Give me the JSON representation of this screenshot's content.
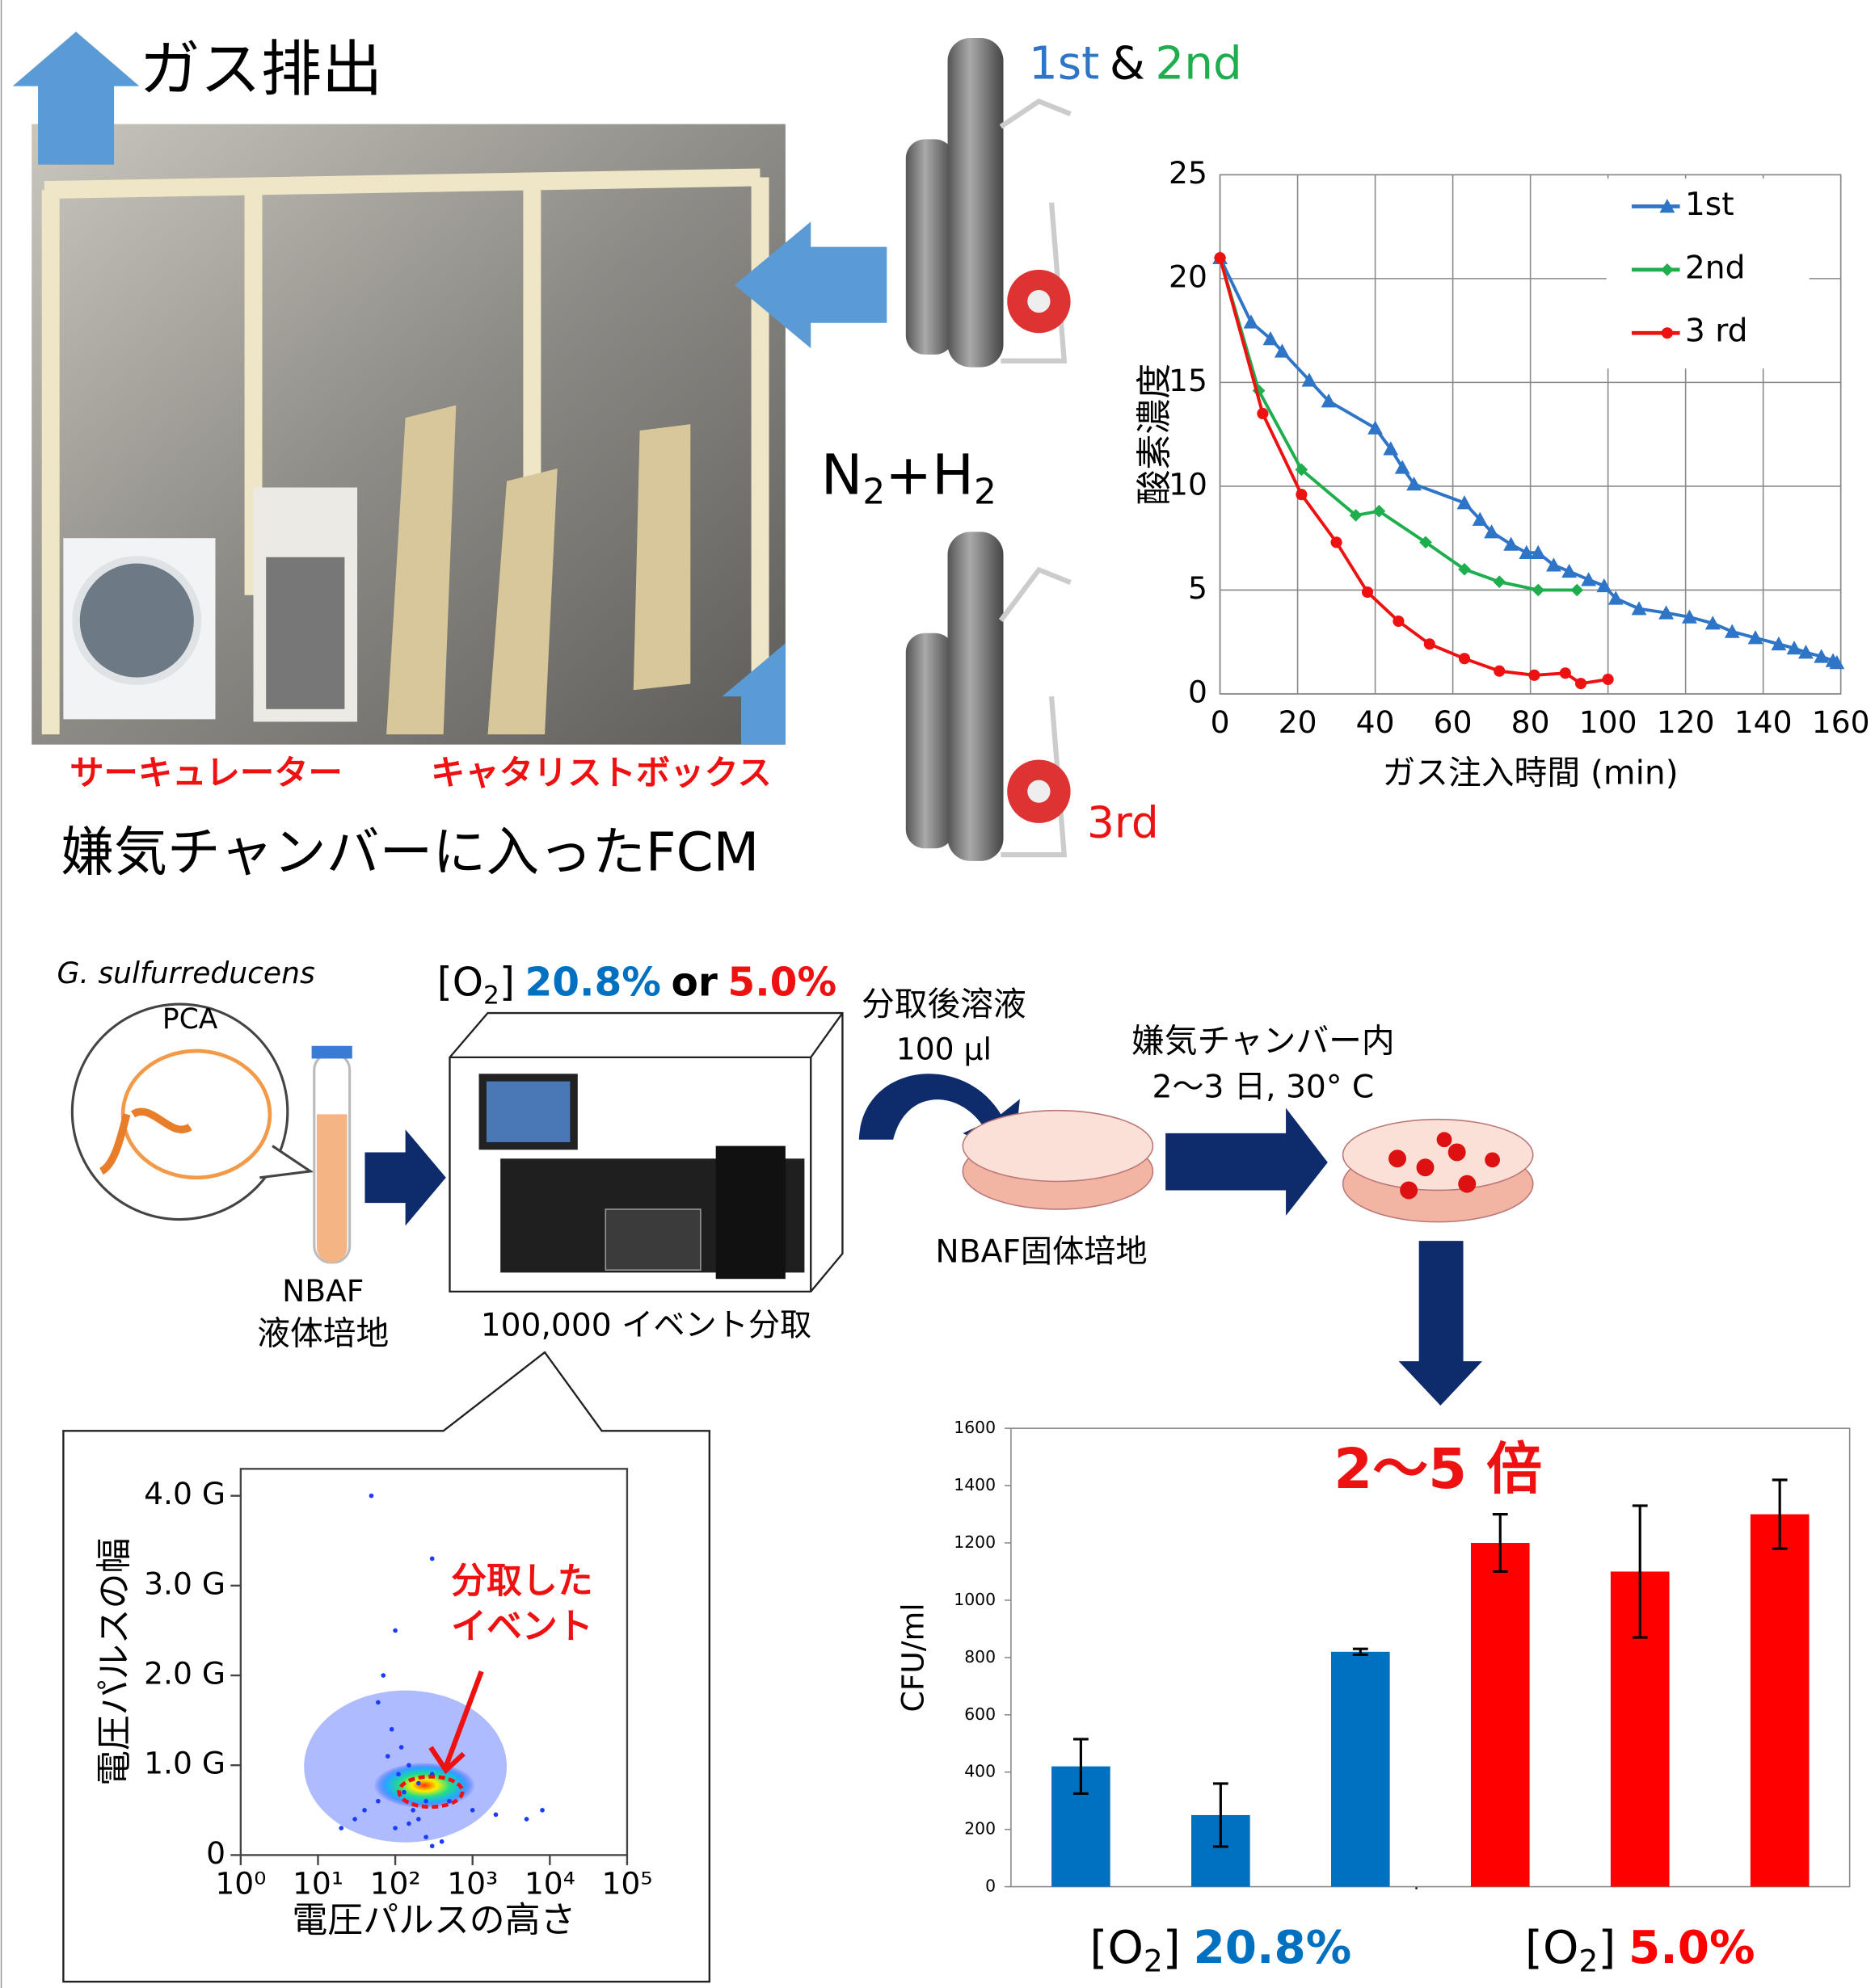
{
  "header": {
    "gas_exhaust": "ガス排出",
    "gas_n": "N",
    "gas_sub1": "2",
    "gas_plus_h": "+H",
    "gas_sub2": "2",
    "cyl_1st": "1st",
    "cyl_amp": "&",
    "cyl_2nd": "2nd",
    "cyl_3rd": "3rd",
    "circulator": "サーキュレーター",
    "catalyst_box": "キャタリストボックス",
    "chamber_caption": "嫌気チャンバーに入ったFCM"
  },
  "workflow": {
    "species": "G. sulfurreducens",
    "strain": "PCA",
    "medium_line1": "NBAF",
    "medium_line2": "液体培地",
    "o2_pre": "[O",
    "o2_sub": "2",
    "o2_post": "]",
    "o2_high": "20.8%",
    "o2_or": "or",
    "o2_low": "5.0%",
    "sorted_solution": "分取後溶液",
    "volume": "100 µl",
    "chamber_inside": "嫌気チャンバー内",
    "incubation": "2～3 日, 30° C",
    "solid_medium": "NBAF固体培地",
    "events_sorted": "100,000 イベント分取"
  },
  "chart_data": [
    {
      "type": "line",
      "xlabel": "ガス注入時間 (min)",
      "ylabel": "酸素濃度",
      "xlim": [
        0,
        160
      ],
      "xticks": [
        0,
        20,
        40,
        60,
        80,
        100,
        120,
        140,
        160
      ],
      "ylim": [
        0,
        25
      ],
      "yticks": [
        0,
        5,
        10,
        15,
        20,
        25
      ],
      "grid": true,
      "legend": "upper right",
      "series": [
        {
          "name": "1st",
          "color": "#2e75c8",
          "marker": "triangle",
          "x": [
            0,
            8,
            13,
            16,
            23,
            28,
            40,
            44,
            47,
            50,
            63,
            67,
            70,
            75,
            79,
            82,
            86,
            90,
            95,
            99,
            102,
            108,
            115,
            121,
            127,
            132,
            138,
            144,
            148,
            151,
            155,
            158,
            159
          ],
          "values": [
            21,
            17.9,
            17.1,
            16.5,
            15.1,
            14.1,
            12.8,
            11.8,
            10.9,
            10.1,
            9.2,
            8.4,
            7.8,
            7.2,
            6.8,
            6.8,
            6.2,
            5.9,
            5.5,
            5.2,
            4.6,
            4.1,
            3.9,
            3.7,
            3.4,
            3.0,
            2.7,
            2.4,
            2.2,
            2.0,
            1.8,
            1.6,
            1.5
          ]
        },
        {
          "name": "2nd",
          "color": "#1fae4e",
          "marker": "diamond",
          "x": [
            0,
            10,
            21,
            35,
            41,
            53,
            63,
            72,
            82,
            92
          ],
          "values": [
            21,
            14.6,
            10.8,
            8.6,
            8.8,
            7.3,
            6.0,
            5.4,
            5.0,
            5.0
          ]
        },
        {
          "name": "3 rd",
          "color": "#ee1111",
          "marker": "circle",
          "x": [
            0,
            11,
            21,
            30,
            38,
            46,
            54,
            63,
            72,
            81,
            89,
            93,
            100
          ],
          "values": [
            21,
            13.5,
            9.6,
            7.3,
            4.9,
            3.5,
            2.4,
            1.7,
            1.1,
            0.9,
            1.0,
            0.5,
            0.7
          ]
        }
      ]
    },
    {
      "type": "scatter",
      "xlabel": "電圧パルスの高さ",
      "ylabel": "電圧パルスの幅",
      "annotation": [
        "分取した",
        "イベント"
      ],
      "log_x": true,
      "xlim": [
        1,
        100000
      ],
      "xticks": [
        {
          "value": 1,
          "label": "10⁰"
        },
        {
          "value": 10,
          "label": "10¹"
        },
        {
          "value": 100,
          "label": "10²"
        },
        {
          "value": 1000,
          "label": "10³"
        },
        {
          "value": 10000,
          "label": "10⁴"
        },
        {
          "value": 100000,
          "label": "10⁵"
        }
      ],
      "ylim": [
        0,
        4.3
      ],
      "yticks": [
        0,
        {
          "value": 1,
          "label": "1.0 G"
        },
        {
          "value": 2,
          "label": "2.0 G"
        },
        {
          "value": 3,
          "label": "3.0 G"
        },
        {
          "value": 4,
          "label": "4.0 G"
        }
      ],
      "color": "#1a3cff",
      "x": [
        49,
        20,
        300,
        100,
        70,
        60,
        90,
        120,
        150,
        80,
        200,
        250,
        110,
        130,
        170,
        60,
        40,
        30,
        300,
        500,
        1000,
        2000,
        5000,
        8000,
        100,
        150,
        200,
        250,
        300,
        400
      ],
      "values": [
        4.0,
        0.3,
        3.3,
        2.5,
        2.0,
        1.7,
        1.4,
        1.2,
        1.0,
        1.1,
        0.8,
        0.6,
        0.9,
        0.7,
        0.5,
        0.6,
        0.5,
        0.4,
        0.9,
        0.6,
        0.5,
        0.45,
        0.4,
        0.5,
        0.3,
        0.35,
        0.4,
        0.2,
        0.1,
        0.15
      ]
    },
    {
      "type": "bar",
      "ylabel": "CFU/ml",
      "annotation": "2～5 倍",
      "categories": [
        null,
        null,
        null,
        null,
        null,
        null
      ],
      "values": [
        420,
        250,
        820,
        1200,
        1100,
        1300
      ],
      "errors": [
        95,
        110,
        10,
        100,
        230,
        120
      ],
      "colors": [
        "#0070c0",
        "#0070c0",
        "#0070c0",
        "#ff0000",
        "#ff0000",
        "#ff0000"
      ],
      "ylim": [
        0,
        1600
      ],
      "yticks": [
        0,
        200,
        400,
        600,
        800,
        1000,
        1200,
        1400,
        1600
      ],
      "group_labels": [
        {
          "pre": "[O",
          "sub": "2",
          "post": "]",
          "value": "20.8%",
          "color": "#0070c0"
        },
        {
          "pre": "[O",
          "sub": "2",
          "post": "]",
          "value": "5.0%",
          "color": "#ff0000"
        }
      ]
    }
  ]
}
